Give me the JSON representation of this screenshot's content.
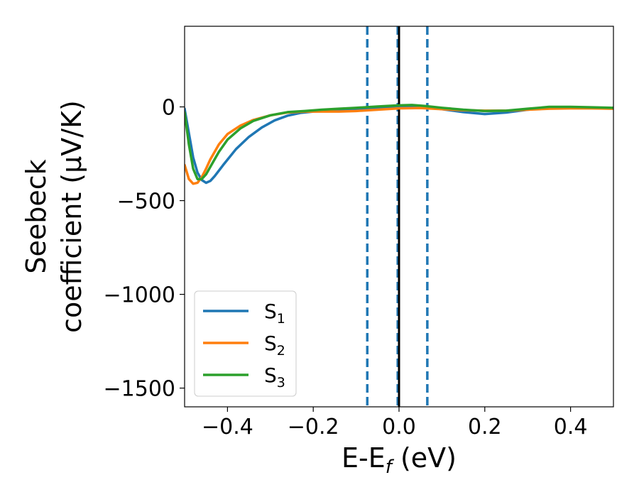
{
  "chart_data": {
    "type": "line",
    "xlabel": "E-E",
    "xlabel_sub": "f",
    "xlabel_unit": " (eV)",
    "ylabel_line1": "Seebeck",
    "ylabel_line2": "coefficient  (μV/K)",
    "xlim": [
      -0.5,
      0.5
    ],
    "ylim": [
      -1600,
      430
    ],
    "xticks": [
      -0.4,
      -0.2,
      0.0,
      0.2,
      0.4
    ],
    "xtick_labels": [
      "−0.4",
      "−0.2",
      "0.0",
      "0.2",
      "0.4"
    ],
    "yticks": [
      0,
      -500,
      -1000,
      -1500
    ],
    "ytick_labels": [
      "0",
      "−500",
      "−1000",
      "−1500"
    ],
    "grid": false,
    "legend_position": "lower-left",
    "vlines": [
      {
        "x": -0.074,
        "style": "dashed",
        "color": "#1f77b4"
      },
      {
        "x": -0.003,
        "style": "dashed",
        "color": "#1f77b4"
      },
      {
        "x": 0.0,
        "style": "solid",
        "color": "#000000"
      },
      {
        "x": 0.066,
        "style": "dashed",
        "color": "#1f77b4"
      }
    ],
    "series": [
      {
        "name": "S",
        "name_sub": "1",
        "color": "#1f77b4",
        "x": [
          -0.5,
          -0.49,
          -0.48,
          -0.47,
          -0.46,
          -0.45,
          -0.44,
          -0.43,
          -0.41,
          -0.38,
          -0.35,
          -0.32,
          -0.29,
          -0.26,
          -0.23,
          -0.2,
          -0.15,
          -0.1,
          -0.05,
          0.0,
          0.03,
          0.06,
          0.1,
          0.15,
          0.2,
          0.25,
          0.3,
          0.35,
          0.4,
          0.45,
          0.5
        ],
        "y": [
          -10,
          -140,
          -270,
          -350,
          -390,
          -405,
          -395,
          -370,
          -310,
          -225,
          -160,
          -110,
          -72,
          -47,
          -32,
          -25,
          -18,
          -12,
          -5,
          5,
          5,
          0,
          -12,
          -28,
          -38,
          -30,
          -15,
          -5,
          -3,
          -5,
          -8
        ]
      },
      {
        "name": "S",
        "name_sub": "2",
        "color": "#ff7f0e",
        "x": [
          -0.5,
          -0.49,
          -0.48,
          -0.47,
          -0.46,
          -0.45,
          -0.44,
          -0.42,
          -0.4,
          -0.37,
          -0.34,
          -0.3,
          -0.26,
          -0.22,
          -0.18,
          -0.14,
          -0.1,
          -0.05,
          0.0,
          0.05,
          0.1,
          0.15,
          0.2,
          0.25,
          0.3,
          0.35,
          0.4,
          0.45,
          0.5
        ],
        "y": [
          -310,
          -385,
          -410,
          -405,
          -375,
          -330,
          -280,
          -200,
          -145,
          -100,
          -70,
          -45,
          -30,
          -25,
          -25,
          -25,
          -22,
          -15,
          -8,
          -6,
          -12,
          -18,
          -20,
          -20,
          -15,
          -10,
          -8,
          -8,
          -10
        ]
      },
      {
        "name": "S",
        "name_sub": "3",
        "color": "#2ca02c",
        "x": [
          -0.5,
          -0.49,
          -0.48,
          -0.47,
          -0.46,
          -0.45,
          -0.44,
          -0.42,
          -0.4,
          -0.37,
          -0.34,
          -0.3,
          -0.26,
          -0.22,
          -0.18,
          -0.14,
          -0.1,
          -0.05,
          0.0,
          0.03,
          0.06,
          0.1,
          0.15,
          0.2,
          0.25,
          0.3,
          0.35,
          0.4,
          0.45,
          0.5
        ],
        "y": [
          -30,
          -200,
          -330,
          -385,
          -385,
          -360,
          -320,
          -240,
          -175,
          -115,
          -75,
          -45,
          -28,
          -22,
          -15,
          -10,
          -5,
          2,
          8,
          10,
          5,
          -5,
          -15,
          -22,
          -20,
          -10,
          0,
          0,
          -2,
          -5
        ]
      }
    ]
  }
}
